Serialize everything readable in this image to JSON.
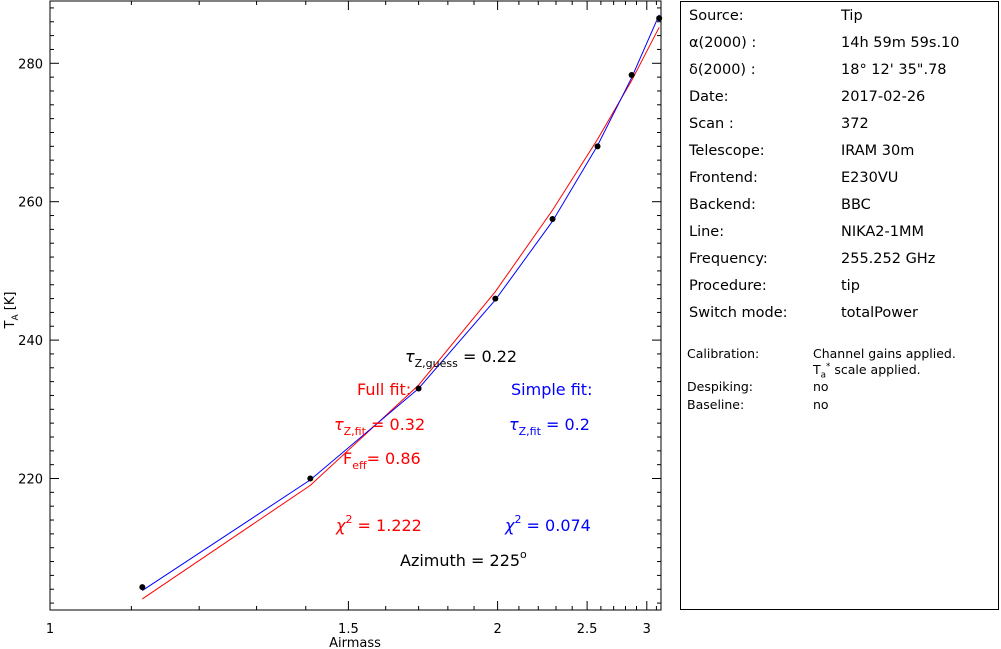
{
  "chart_data": {
    "type": "scatter",
    "xlabel": "Airmass",
    "ylabel": "T_A [K]",
    "x_ticks": [
      "1",
      "1.5",
      "2",
      "2.5",
      "3"
    ],
    "y_ticks": [
      "220",
      "240",
      "260",
      "280"
    ],
    "xlim": [
      1.0,
      3.15
    ],
    "ylim": [
      201.0,
      289.0
    ],
    "x_scale": "reciprocal",
    "grid": false,
    "points": [
      {
        "x": 1.115,
        "y": 204.3
      },
      {
        "x": 1.41,
        "y": 220.0
      },
      {
        "x": 1.7,
        "y": 233.0
      },
      {
        "x": 1.99,
        "y": 246.0
      },
      {
        "x": 2.28,
        "y": 257.5
      },
      {
        "x": 2.575,
        "y": 268.0
      },
      {
        "x": 2.855,
        "y": 278.3
      },
      {
        "x": 3.13,
        "y": 286.5
      }
    ],
    "series": [
      {
        "name": "Full fit",
        "color": "#ff0000",
        "x": [
          1.115,
          1.41,
          1.7,
          1.99,
          2.28,
          2.575,
          2.855,
          3.13
        ],
        "y": [
          202.6,
          219.0,
          233.5,
          247.0,
          258.8,
          269.0,
          277.5,
          285.2
        ]
      },
      {
        "name": "Simple fit",
        "color": "#0000ff",
        "x": [
          1.115,
          1.41,
          1.7,
          1.99,
          2.28,
          2.575,
          2.855,
          3.13
        ],
        "y": [
          203.8,
          219.8,
          233.0,
          245.8,
          257.2,
          268.1,
          277.9,
          287.0
        ]
      }
    ],
    "annotations": {
      "tau_guess_label": "τZ,guess = 0.22",
      "full_fit_label": "Full fit:",
      "simple_fit_label": "Simple fit:",
      "full_tau_label": "τZ,fit = 0.32",
      "simple_tau_label": "τZ,fit = 0.2",
      "feff_label": "Feff= 0.86",
      "full_chi2_label": "χ2 = 1.222",
      "simple_chi2_label": "χ2 = 0.074",
      "azimuth_label": "Azimuth = 225°"
    },
    "colors": {
      "full_fit": "#ff0000",
      "simple_fit": "#0000ff",
      "text": "#000000"
    }
  },
  "info": {
    "rows": [
      {
        "key": "Source:",
        "value": "Tip"
      },
      {
        "key": "α(2000) :",
        "value": "14h 59m 59s.10"
      },
      {
        "key": "δ(2000) :",
        "value": "18° 12' 35\".78"
      },
      {
        "key": "Date:",
        "value": "2017-02-26"
      },
      {
        "key": "Scan :",
        "value": "372"
      },
      {
        "key": "Telescope:",
        "value": "IRAM 30m"
      },
      {
        "key": "Frontend:",
        "value": "E230VU"
      },
      {
        "key": "Backend:",
        "value": "BBC"
      },
      {
        "key": "Line:",
        "value": "NIKA2-1MM"
      },
      {
        "key": "Frequency:",
        "value": "255.252 GHz"
      },
      {
        "key": "Procedure:",
        "value": "tip"
      },
      {
        "key": "Switch mode:",
        "value": "totalPower"
      }
    ],
    "calibration_key": "Calibration:",
    "calibration_value_1": "Channel gains applied.",
    "calibration_value_2": "Ta* scale applied.",
    "despiking_key": "Despiking:",
    "despiking_value": "no",
    "baseline_key": "Baseline:",
    "baseline_value": "no"
  }
}
